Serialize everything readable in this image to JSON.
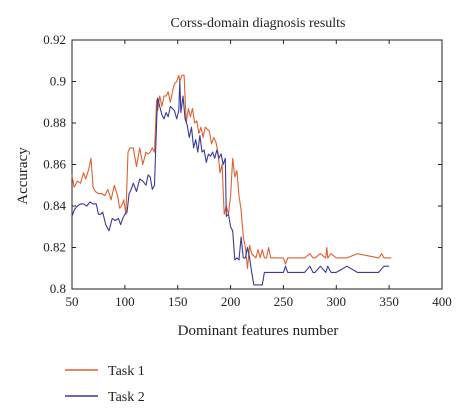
{
  "chart_data": {
    "type": "line",
    "title": "Corss-domain diagnosis results",
    "xlabel": "Dominant features number",
    "ylabel": "Accuracy",
    "xlim": [
      50,
      400
    ],
    "ylim": [
      0.8,
      0.92
    ],
    "xticks": [
      50,
      100,
      150,
      200,
      250,
      300,
      350,
      400
    ],
    "yticks": [
      0.8,
      0.82,
      0.84,
      0.86,
      0.88,
      0.9,
      0.92
    ],
    "xtick_labels": [
      "50",
      "100",
      "150",
      "200",
      "250",
      "300",
      "350",
      "400"
    ],
    "ytick_labels": [
      "0.8",
      "0.82",
      "0.84",
      "0.86",
      "0.88",
      "0.9",
      "0.92"
    ],
    "grid": false,
    "legend_position": "below",
    "series": [
      {
        "name": "Task 1",
        "color": "#e06030",
        "x": [
          50,
          52,
          55,
          58,
          61,
          63,
          66,
          68,
          70,
          72,
          75,
          78,
          81,
          84,
          87,
          90,
          93,
          95,
          97,
          99,
          101,
          103,
          105,
          108,
          111,
          114,
          117,
          120,
          122,
          124,
          126,
          128,
          130,
          131,
          133,
          135,
          137,
          139,
          141,
          143,
          145,
          147,
          149,
          151,
          152,
          154,
          156,
          158,
          160,
          162,
          164,
          166,
          168,
          170,
          172,
          174,
          176,
          178,
          180,
          182,
          184,
          186,
          188,
          190,
          192,
          194,
          196,
          198,
          200,
          202,
          204,
          206,
          208,
          210,
          212,
          214,
          216,
          218,
          220,
          222,
          224,
          226,
          228,
          230,
          232,
          234,
          236,
          238,
          240,
          250,
          252,
          254,
          260,
          270,
          275,
          278,
          280,
          285,
          290,
          291,
          292,
          295,
          300,
          310,
          320,
          340,
          343,
          345,
          352
        ],
        "y": [
          0.855,
          0.849,
          0.852,
          0.851,
          0.856,
          0.853,
          0.858,
          0.863,
          0.849,
          0.847,
          0.846,
          0.846,
          0.845,
          0.848,
          0.843,
          0.85,
          0.845,
          0.839,
          0.84,
          0.843,
          0.836,
          0.866,
          0.868,
          0.868,
          0.859,
          0.868,
          0.86,
          0.866,
          0.865,
          0.866,
          0.868,
          0.866,
          0.891,
          0.886,
          0.893,
          0.888,
          0.893,
          0.893,
          0.895,
          0.89,
          0.895,
          0.899,
          0.9,
          0.903,
          0.9,
          0.903,
          0.903,
          0.88,
          0.887,
          0.883,
          0.887,
          0.88,
          0.881,
          0.875,
          0.878,
          0.873,
          0.878,
          0.877,
          0.876,
          0.87,
          0.873,
          0.871,
          0.866,
          0.856,
          0.86,
          0.836,
          0.84,
          0.836,
          0.845,
          0.863,
          0.854,
          0.857,
          0.845,
          0.838,
          0.825,
          0.82,
          0.81,
          0.821,
          0.817,
          0.816,
          0.815,
          0.819,
          0.815,
          0.819,
          0.815,
          0.815,
          0.82,
          0.815,
          0.815,
          0.815,
          0.812,
          0.815,
          0.815,
          0.815,
          0.817,
          0.815,
          0.815,
          0.817,
          0.815,
          0.82,
          0.815,
          0.817,
          0.815,
          0.815,
          0.817,
          0.815,
          0.817,
          0.815,
          0.815
        ]
      },
      {
        "name": "Task 2",
        "color": "#3a3a9a",
        "x": [
          50,
          52,
          55,
          58,
          61,
          64,
          67,
          70,
          73,
          75,
          77,
          79,
          82,
          85,
          88,
          91,
          94,
          96,
          98,
          100,
          102,
          104,
          106,
          108,
          111,
          114,
          117,
          120,
          122,
          124,
          126,
          128,
          130,
          131,
          133,
          135,
          137,
          139,
          141,
          143,
          145,
          147,
          149,
          151,
          152,
          153,
          155,
          157,
          159,
          161,
          163,
          165,
          167,
          169,
          171,
          173,
          175,
          177,
          179,
          181,
          183,
          185,
          187,
          189,
          191,
          193,
          195,
          196,
          198,
          200,
          202,
          204,
          206,
          208,
          210,
          212,
          214,
          216,
          218,
          220,
          222,
          225,
          230,
          232,
          234,
          236,
          240,
          250,
          252,
          254,
          260,
          270,
          275,
          278,
          280,
          285,
          290,
          292,
          295,
          300,
          310,
          320,
          340,
          345,
          350
        ],
        "y": [
          0.835,
          0.838,
          0.84,
          0.841,
          0.841,
          0.84,
          0.842,
          0.841,
          0.841,
          0.836,
          0.836,
          0.837,
          0.831,
          0.828,
          0.834,
          0.833,
          0.834,
          0.831,
          0.834,
          0.836,
          0.837,
          0.846,
          0.848,
          0.851,
          0.847,
          0.853,
          0.852,
          0.85,
          0.855,
          0.854,
          0.848,
          0.85,
          0.88,
          0.892,
          0.888,
          0.884,
          0.882,
          0.885,
          0.883,
          0.888,
          0.887,
          0.886,
          0.882,
          0.886,
          0.9,
          0.885,
          0.893,
          0.882,
          0.879,
          0.873,
          0.878,
          0.868,
          0.872,
          0.866,
          0.874,
          0.866,
          0.867,
          0.861,
          0.865,
          0.864,
          0.866,
          0.863,
          0.867,
          0.863,
          0.865,
          0.86,
          0.863,
          0.835,
          0.836,
          0.83,
          0.828,
          0.814,
          0.815,
          0.814,
          0.825,
          0.815,
          0.815,
          0.82,
          0.815,
          0.808,
          0.802,
          0.802,
          0.802,
          0.808,
          0.808,
          0.808,
          0.808,
          0.808,
          0.811,
          0.808,
          0.808,
          0.808,
          0.811,
          0.808,
          0.808,
          0.811,
          0.808,
          0.811,
          0.808,
          0.808,
          0.811,
          0.808,
          0.808,
          0.811,
          0.811
        ]
      }
    ]
  }
}
